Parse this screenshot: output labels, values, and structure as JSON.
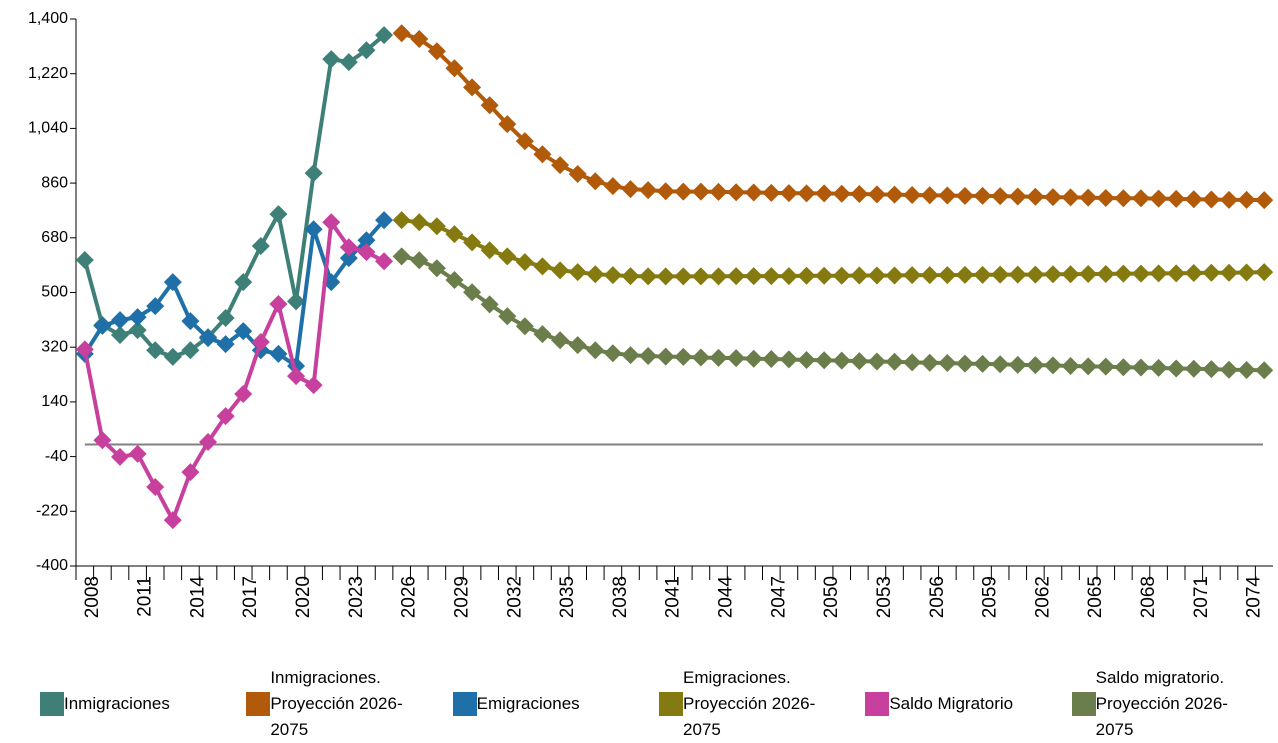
{
  "chart_data": {
    "type": "line",
    "x": [
      2008,
      2009,
      2010,
      2011,
      2012,
      2013,
      2014,
      2015,
      2016,
      2017,
      2018,
      2019,
      2020,
      2021,
      2022,
      2023,
      2024,
      2025,
      2026,
      2027,
      2028,
      2029,
      2030,
      2031,
      2032,
      2033,
      2034,
      2035,
      2036,
      2037,
      2038,
      2039,
      2040,
      2041,
      2042,
      2043,
      2044,
      2045,
      2046,
      2047,
      2048,
      2049,
      2050,
      2051,
      2052,
      2053,
      2054,
      2055,
      2056,
      2057,
      2058,
      2059,
      2060,
      2061,
      2062,
      2063,
      2064,
      2065,
      2066,
      2067,
      2068,
      2069,
      2070,
      2071,
      2072,
      2073,
      2074,
      2075
    ],
    "xlim": [
      2007.5,
      2075.5
    ],
    "xticks": [
      2008,
      2011,
      2014,
      2017,
      2020,
      2023,
      2026,
      2029,
      2032,
      2035,
      2038,
      2041,
      2044,
      2047,
      2050,
      2053,
      2056,
      2059,
      2062,
      2065,
      2068,
      2071,
      2074
    ],
    "ylim": [
      -400,
      1400
    ],
    "yticks": [
      -400,
      -220,
      -40,
      140,
      320,
      500,
      680,
      860,
      {
        "value": 1040,
        "label": "1,040"
      },
      {
        "value": 1220,
        "label": "1,220"
      },
      {
        "value": 1400,
        "label": "1,400"
      }
    ],
    "grid": false,
    "series": [
      {
        "name": "Inmigraciones",
        "color": "#3e8077",
        "values": [
          607,
          393,
          360,
          376,
          310,
          288,
          310,
          353,
          416,
          534,
          653,
          758,
          471,
          893,
          1268,
          1258,
          1297,
          1347,
          null,
          null,
          null,
          null,
          null,
          null,
          null,
          null,
          null,
          null,
          null,
          null,
          null,
          null,
          null,
          null,
          null,
          null,
          null,
          null,
          null,
          null,
          null,
          null,
          null,
          null,
          null,
          null,
          null,
          null,
          null,
          null,
          null,
          null,
          null,
          null,
          null,
          null,
          null,
          null,
          null,
          null,
          null,
          null,
          null,
          null,
          null,
          null,
          null,
          null
        ]
      },
      {
        "name": "Inmigraciones. Proyección 2026-2075",
        "color": "#b05a0a",
        "values": [
          null,
          null,
          null,
          null,
          null,
          null,
          null,
          null,
          null,
          null,
          null,
          null,
          null,
          null,
          null,
          null,
          null,
          null,
          1353,
          1334,
          1294,
          1238,
          1175,
          1116,
          1054,
          998,
          955,
          919,
          890,
          866,
          850,
          840,
          837,
          833,
          832,
          832,
          831,
          830,
          829,
          828,
          827,
          826,
          826,
          825,
          824,
          823,
          822,
          821,
          820,
          819,
          818,
          818,
          817,
          816,
          815,
          814,
          813,
          812,
          811,
          810,
          810,
          809,
          808,
          807,
          806,
          805,
          805,
          804
        ]
      },
      {
        "name": "Emigraciones",
        "color": "#1f6fa8",
        "values": [
          298,
          390,
          409,
          419,
          455,
          534,
          406,
          350,
          330,
          373,
          310,
          298,
          258,
          708,
          534,
          613,
          672,
          738,
          null,
          null,
          null,
          null,
          null,
          null,
          null,
          null,
          null,
          null,
          null,
          null,
          null,
          null,
          null,
          null,
          null,
          null,
          null,
          null,
          null,
          null,
          null,
          null,
          null,
          null,
          null,
          null,
          null,
          null,
          null,
          null,
          null,
          null,
          null,
          null,
          null,
          null,
          null,
          null,
          null,
          null,
          null,
          null,
          null,
          null,
          null,
          null,
          null,
          null
        ]
      },
      {
        "name": "Emigraciones. Proyección 2026-2075",
        "color": "#857a10",
        "values": [
          null,
          null,
          null,
          null,
          null,
          null,
          null,
          null,
          null,
          null,
          null,
          null,
          null,
          null,
          null,
          null,
          null,
          null,
          738,
          731,
          718,
          692,
          665,
          639,
          619,
          600,
          586,
          573,
          567,
          560,
          557,
          554,
          553,
          553,
          553,
          553,
          553,
          554,
          554,
          554,
          554,
          555,
          555,
          555,
          556,
          556,
          556,
          557,
          557,
          557,
          558,
          558,
          559,
          559,
          559,
          560,
          560,
          561,
          561,
          562,
          562,
          563,
          563,
          564,
          565,
          565,
          566,
          567
        ]
      },
      {
        "name": "Saldo Migratorio",
        "color": "#c8409e",
        "values": [
          313,
          14,
          -41,
          -31,
          -140,
          -249,
          -91,
          8,
          93,
          166,
          337,
          462,
          225,
          195,
          731,
          649,
          633,
          603,
          null,
          null,
          null,
          null,
          null,
          null,
          null,
          null,
          null,
          null,
          null,
          null,
          null,
          null,
          null,
          null,
          null,
          null,
          null,
          null,
          null,
          null,
          null,
          null,
          null,
          null,
          null,
          null,
          null,
          null,
          null,
          null,
          null,
          null,
          null,
          null,
          null,
          null,
          null,
          null,
          null,
          null,
          null,
          null,
          null,
          null,
          null,
          null,
          null,
          null
        ]
      },
      {
        "name": "Saldo migratorio. Proyección 2026-2075",
        "color": "#6b7d4b",
        "values": [
          null,
          null,
          null,
          null,
          null,
          null,
          null,
          null,
          null,
          null,
          null,
          null,
          null,
          null,
          null,
          null,
          null,
          null,
          619,
          606,
          580,
          541,
          501,
          461,
          422,
          389,
          363,
          343,
          327,
          310,
          300,
          294,
          291,
          289,
          288,
          286,
          285,
          284,
          282,
          281,
          280,
          278,
          277,
          276,
          274,
          273,
          272,
          270,
          269,
          268,
          266,
          265,
          264,
          262,
          261,
          260,
          258,
          257,
          256,
          254,
          253,
          252,
          250,
          249,
          248,
          246,
          245,
          244
        ]
      }
    ]
  }
}
